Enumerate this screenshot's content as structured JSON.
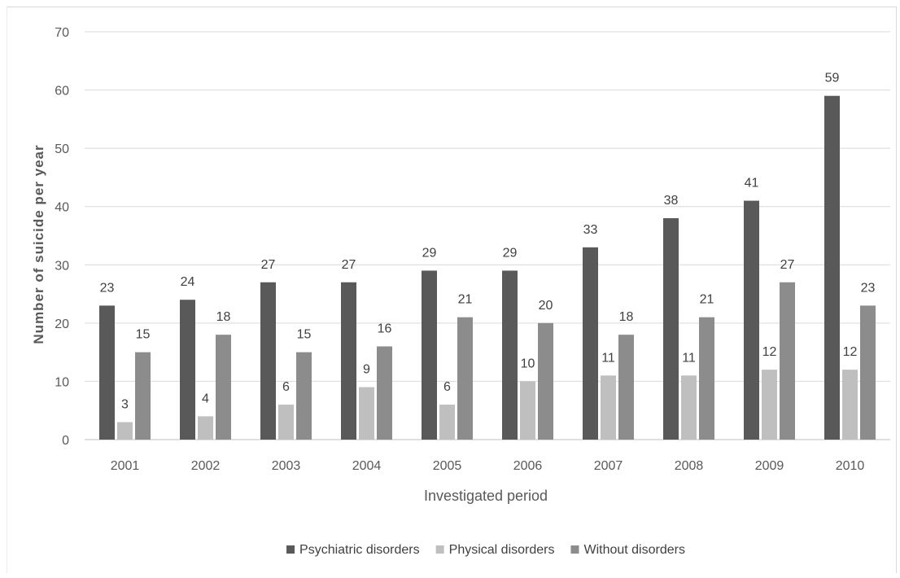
{
  "chart_data": {
    "type": "bar",
    "title": "",
    "xlabel": "Investigated period",
    "ylabel": "Number of suicide per year",
    "categories": [
      "2001",
      "2002",
      "2003",
      "2004",
      "2005",
      "2006",
      "2007",
      "2008",
      "2009",
      "2010"
    ],
    "series": [
      {
        "name": "Psychiatric disorders",
        "color": "#595959",
        "values": [
          23,
          24,
          27,
          27,
          29,
          29,
          33,
          38,
          41,
          59
        ]
      },
      {
        "name": "Physical disorders",
        "color": "#bfbfbf",
        "values": [
          3,
          4,
          6,
          9,
          6,
          10,
          11,
          11,
          12,
          12
        ]
      },
      {
        "name": "Without disorders",
        "color": "#8c8c8c",
        "values": [
          15,
          18,
          15,
          16,
          21,
          20,
          18,
          21,
          27,
          23
        ]
      }
    ],
    "ylim": [
      0,
      70
    ],
    "yticks": [
      0,
      10,
      20,
      30,
      40,
      50,
      60,
      70
    ],
    "grid": true,
    "legend": "bottom",
    "data_labels": true
  }
}
